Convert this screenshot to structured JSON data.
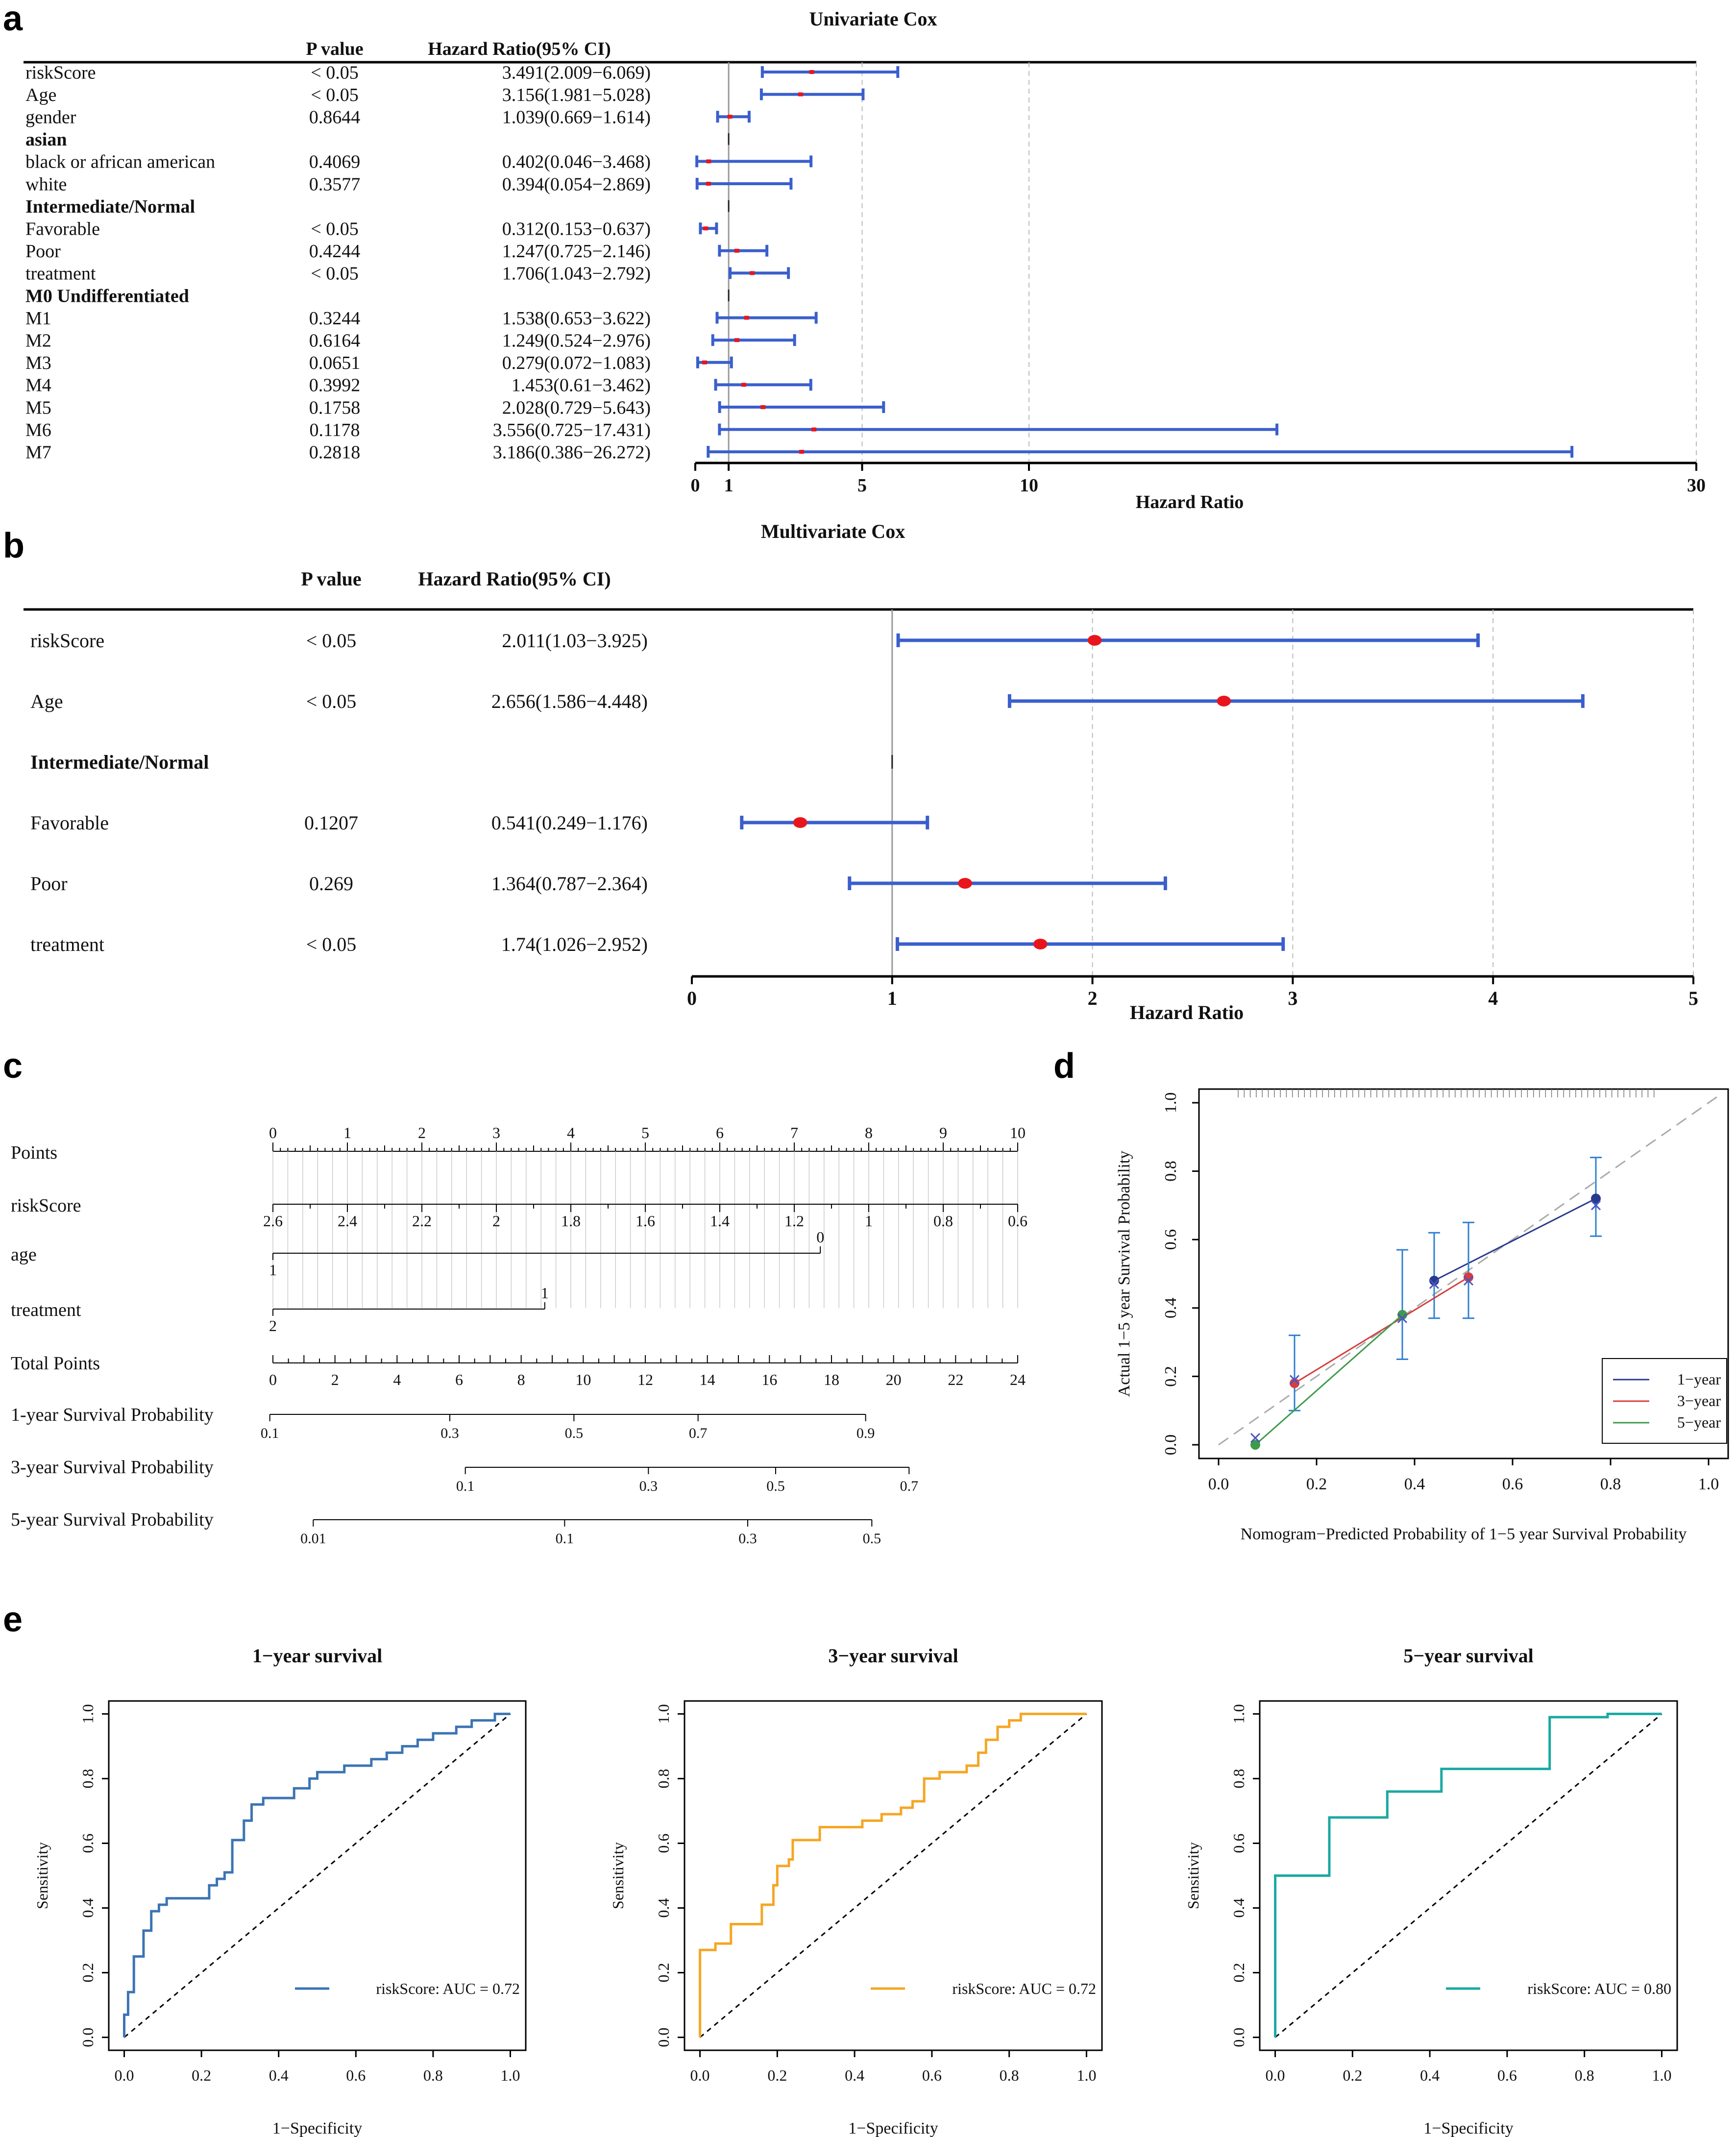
{
  "panels": {
    "a": "a",
    "b": "b",
    "c": "c",
    "d": "d",
    "e": "e"
  },
  "colors": {
    "ci": "#3a5fcd",
    "point": "#e8161c",
    "grid": "#bbbbbb",
    "y1": "#283a8c",
    "y3": "#d63e3e",
    "y5": "#3d9b4a",
    "roc1": "#3b74b4",
    "roc3": "#f5a623",
    "roc5": "#1aa9a2"
  },
  "chart_data": [
    {
      "type": "forest",
      "title": "Univariate Cox",
      "col_p": "P value",
      "col_hr": "Hazard Ratio(95% CI)",
      "xlabel": "Hazard Ratio",
      "xticks": [
        0,
        1,
        5,
        10,
        30
      ],
      "xlim": [
        0,
        30
      ],
      "rows": [
        {
          "label": "riskScore",
          "p": "< 0.05",
          "hr_text": "3.491(2.009−6.069)",
          "hr": 3.491,
          "lo": 2.009,
          "hi": 6.069
        },
        {
          "label": "Age",
          "p": "< 0.05",
          "hr_text": "3.156(1.981−5.028)",
          "hr": 3.156,
          "lo": 1.981,
          "hi": 5.028
        },
        {
          "label": "gender",
          "p": "0.8644",
          "hr_text": "1.039(0.669−1.614)",
          "hr": 1.039,
          "lo": 0.669,
          "hi": 1.614
        },
        {
          "label": "asian",
          "header": true
        },
        {
          "label": "black or african american",
          "p": "0.4069",
          "hr_text": "0.402(0.046−3.468)",
          "hr": 0.402,
          "lo": 0.046,
          "hi": 3.468
        },
        {
          "label": "white",
          "p": "0.3577",
          "hr_text": "0.394(0.054−2.869)",
          "hr": 0.394,
          "lo": 0.054,
          "hi": 2.869
        },
        {
          "label": "Intermediate/Normal",
          "header": true
        },
        {
          "label": "Favorable",
          "p": "< 0.05",
          "hr_text": "0.312(0.153−0.637)",
          "hr": 0.312,
          "lo": 0.153,
          "hi": 0.637
        },
        {
          "label": "Poor",
          "p": "0.4244",
          "hr_text": "1.247(0.725−2.146)",
          "hr": 1.247,
          "lo": 0.725,
          "hi": 2.146
        },
        {
          "label": "treatment",
          "p": "< 0.05",
          "hr_text": "1.706(1.043−2.792)",
          "hr": 1.706,
          "lo": 1.043,
          "hi": 2.792
        },
        {
          "label": "M0 Undifferentiated",
          "header": true
        },
        {
          "label": "M1",
          "p": "0.3244",
          "hr_text": "1.538(0.653−3.622)",
          "hr": 1.538,
          "lo": 0.653,
          "hi": 3.622
        },
        {
          "label": "M2",
          "p": "0.6164",
          "hr_text": "1.249(0.524−2.976)",
          "hr": 1.249,
          "lo": 0.524,
          "hi": 2.976
        },
        {
          "label": "M3",
          "p": "0.0651",
          "hr_text": "0.279(0.072−1.083)",
          "hr": 0.279,
          "lo": 0.072,
          "hi": 1.083
        },
        {
          "label": "M4",
          "p": "0.3992",
          "hr_text": "1.453(0.61−3.462)",
          "hr": 1.453,
          "lo": 0.61,
          "hi": 3.462
        },
        {
          "label": "M5",
          "p": "0.1758",
          "hr_text": "2.028(0.729−5.643)",
          "hr": 2.028,
          "lo": 0.729,
          "hi": 5.643
        },
        {
          "label": "M6",
          "p": "0.1178",
          "hr_text": "3.556(0.725−17.431)",
          "hr": 3.556,
          "lo": 0.725,
          "hi": 17.431
        },
        {
          "label": "M7",
          "p": "0.2818",
          "hr_text": "3.186(0.386−26.272)",
          "hr": 3.186,
          "lo": 0.386,
          "hi": 26.272
        }
      ]
    },
    {
      "type": "forest",
      "title": "Multivariate Cox",
      "col_p": "P value",
      "col_hr": "Hazard Ratio(95% CI)",
      "xlabel": "Hazard Ratio",
      "xticks": [
        0,
        1,
        2,
        3,
        4,
        5
      ],
      "xlim": [
        0,
        5
      ],
      "rows": [
        {
          "label": "riskScore",
          "p": "< 0.05",
          "hr_text": "2.011(1.03−3.925)",
          "hr": 2.011,
          "lo": 1.03,
          "hi": 3.925
        },
        {
          "label": "Age",
          "p": "< 0.05",
          "hr_text": "2.656(1.586−4.448)",
          "hr": 2.656,
          "lo": 1.586,
          "hi": 4.448
        },
        {
          "label": "Intermediate/Normal",
          "header": true
        },
        {
          "label": "Favorable",
          "p": "0.1207",
          "hr_text": "0.541(0.249−1.176)",
          "hr": 0.541,
          "lo": 0.249,
          "hi": 1.176
        },
        {
          "label": "Poor",
          "p": "0.269",
          "hr_text": "1.364(0.787−2.364)",
          "hr": 1.364,
          "lo": 0.787,
          "hi": 2.364
        },
        {
          "label": "treatment",
          "p": "< 0.05",
          "hr_text": "1.74(1.026−2.952)",
          "hr": 1.74,
          "lo": 1.026,
          "hi": 2.952
        }
      ]
    },
    {
      "type": "nomogram",
      "scales": [
        {
          "label": "Points",
          "kind": "points",
          "ticks": [
            {
              "v": 0,
              "t": "0"
            },
            {
              "v": 1,
              "t": "1"
            },
            {
              "v": 2,
              "t": "2"
            },
            {
              "v": 3,
              "t": "3"
            },
            {
              "v": 4,
              "t": "4"
            },
            {
              "v": 5,
              "t": "5"
            },
            {
              "v": 6,
              "t": "6"
            },
            {
              "v": 7,
              "t": "7"
            },
            {
              "v": 8,
              "t": "8"
            },
            {
              "v": 9,
              "t": "9"
            },
            {
              "v": 10,
              "t": "10"
            }
          ]
        },
        {
          "label": "riskScore",
          "kind": "axis",
          "ticks": [
            {
              "v": 0,
              "t": "2.6"
            },
            {
              "v": 1,
              "t": "2.4"
            },
            {
              "v": 2,
              "t": "2.2"
            },
            {
              "v": 3,
              "t": "2"
            },
            {
              "v": 4,
              "t": "1.8"
            },
            {
              "v": 5,
              "t": "1.6"
            },
            {
              "v": 6,
              "t": "1.4"
            },
            {
              "v": 7,
              "t": "1.2"
            },
            {
              "v": 8,
              "t": "1"
            },
            {
              "v": 9,
              "t": "0.8"
            },
            {
              "v": 10,
              "t": "0.6"
            }
          ]
        },
        {
          "label": "age",
          "kind": "binary",
          "start": {
            "v": 0,
            "t": "1"
          },
          "end": {
            "v": 7.35,
            "t": "0"
          }
        },
        {
          "label": "treatment",
          "kind": "binary",
          "start": {
            "v": 0,
            "t": "2"
          },
          "end": {
            "v": 3.65,
            "t": "1"
          }
        },
        {
          "label": "Total Points",
          "kind": "total",
          "min": 0,
          "max": 24,
          "ticks": [
            {
              "v": 0,
              "t": "0"
            },
            {
              "v": 2,
              "t": "2"
            },
            {
              "v": 4,
              "t": "4"
            },
            {
              "v": 6,
              "t": "6"
            },
            {
              "v": 8,
              "t": "8"
            },
            {
              "v": 10,
              "t": "10"
            },
            {
              "v": 12,
              "t": "12"
            },
            {
              "v": 14,
              "t": "14"
            },
            {
              "v": 16,
              "t": "16"
            },
            {
              "v": 18,
              "t": "18"
            },
            {
              "v": 20,
              "t": "20"
            },
            {
              "v": 22,
              "t": "22"
            },
            {
              "v": 24,
              "t": "24"
            }
          ]
        },
        {
          "label": "1-year Survival Probability",
          "kind": "prob",
          "range": [
            -0.1,
            19.1
          ],
          "ticks": [
            {
              "v": -0.1,
              "t": "0.1"
            },
            {
              "v": 5.7,
              "t": "0.3"
            },
            {
              "v": 9.7,
              "t": "0.5"
            },
            {
              "v": 13.7,
              "t": "0.7"
            },
            {
              "v": 19.1,
              "t": "0.9"
            }
          ]
        },
        {
          "label": "3-year Survival Probability",
          "kind": "prob",
          "range": [
            6.2,
            20.5
          ],
          "ticks": [
            {
              "v": 6.2,
              "t": "0.1"
            },
            {
              "v": 12.1,
              "t": "0.3"
            },
            {
              "v": 16.2,
              "t": "0.5"
            },
            {
              "v": 20.5,
              "t": "0.7"
            }
          ]
        },
        {
          "label": "5-year Survival Probability",
          "kind": "prob",
          "range": [
            1.3,
            19.3
          ],
          "ticks": [
            {
              "v": 1.3,
              "t": "0.01"
            },
            {
              "v": 9.4,
              "t": "0.1"
            },
            {
              "v": 15.3,
              "t": "0.3"
            },
            {
              "v": 19.3,
              "t": "0.5"
            }
          ]
        }
      ]
    },
    {
      "type": "calibration",
      "xlabel": "Nomogram−Predicted Probability of 1−5 year Survival Probability",
      "ylabel": "Actual 1−5 year Survival Probability",
      "xlim": [
        -0.04,
        1.04
      ],
      "ylim": [
        -0.04,
        1.04
      ],
      "ticks": [
        {
          "v": 0,
          "t": "0.0"
        },
        {
          "v": 0.2,
          "t": "0.2"
        },
        {
          "v": 0.4,
          "t": "0.4"
        },
        {
          "v": 0.6,
          "t": "0.6"
        },
        {
          "v": 0.8,
          "t": "0.8"
        },
        {
          "v": 1,
          "t": "1.0"
        }
      ],
      "legend": [
        "1−year",
        "3−year",
        "5−year"
      ],
      "series": [
        {
          "name": "1-year",
          "color_key": "y1",
          "points": [
            {
              "x": 0.44,
              "y": 0.48,
              "lo": 0.37,
              "hi": 0.62,
              "xx": 0.44,
              "xy": 0.47
            },
            {
              "x": 0.77,
              "y": 0.72,
              "lo": 0.61,
              "hi": 0.84,
              "xx": 0.77,
              "xy": 0.7
            }
          ]
        },
        {
          "name": "3-year",
          "color_key": "y3",
          "points": [
            {
              "x": 0.155,
              "y": 0.18,
              "lo": 0.1,
              "hi": 0.32,
              "xx": 0.155,
              "xy": 0.19
            },
            {
              "x": 0.51,
              "y": 0.49,
              "lo": 0.37,
              "hi": 0.65,
              "xx": 0.51,
              "xy": 0.48
            }
          ]
        },
        {
          "name": "5-year",
          "color_key": "y5",
          "points": [
            {
              "x": 0.075,
              "y": 0.0,
              "lo": 0.0,
              "hi": 0.0,
              "xx": 0.075,
              "xy": 0.02
            },
            {
              "x": 0.375,
              "y": 0.38,
              "lo": 0.25,
              "hi": 0.57,
              "xx": 0.375,
              "xy": 0.37
            }
          ]
        }
      ]
    },
    {
      "type": "roc",
      "title": "1−year survival",
      "xlabel": "1−Specificity",
      "ylabel": "Sensitivity",
      "legend": "riskScore: AUC = 0.72",
      "auc": 0.72,
      "color_key": "roc1",
      "ticks": [
        {
          "v": 0,
          "t": "0.0"
        },
        {
          "v": 0.2,
          "t": "0.2"
        },
        {
          "v": 0.4,
          "t": "0.4"
        },
        {
          "v": 0.6,
          "t": "0.6"
        },
        {
          "v": 0.8,
          "t": "0.8"
        },
        {
          "v": 1,
          "t": "1.0"
        }
      ],
      "curve": [
        [
          0,
          0
        ],
        [
          0,
          0.07
        ],
        [
          0.01,
          0.07
        ],
        [
          0.01,
          0.14
        ],
        [
          0.025,
          0.14
        ],
        [
          0.025,
          0.25
        ],
        [
          0.05,
          0.25
        ],
        [
          0.05,
          0.33
        ],
        [
          0.07,
          0.33
        ],
        [
          0.07,
          0.39
        ],
        [
          0.09,
          0.39
        ],
        [
          0.09,
          0.41
        ],
        [
          0.11,
          0.41
        ],
        [
          0.11,
          0.43
        ],
        [
          0.22,
          0.43
        ],
        [
          0.22,
          0.47
        ],
        [
          0.24,
          0.47
        ],
        [
          0.24,
          0.49
        ],
        [
          0.26,
          0.49
        ],
        [
          0.26,
          0.51
        ],
        [
          0.28,
          0.51
        ],
        [
          0.28,
          0.61
        ],
        [
          0.31,
          0.61
        ],
        [
          0.31,
          0.67
        ],
        [
          0.33,
          0.67
        ],
        [
          0.33,
          0.72
        ],
        [
          0.36,
          0.72
        ],
        [
          0.36,
          0.74
        ],
        [
          0.44,
          0.74
        ],
        [
          0.44,
          0.77
        ],
        [
          0.48,
          0.77
        ],
        [
          0.48,
          0.8
        ],
        [
          0.5,
          0.8
        ],
        [
          0.5,
          0.82
        ],
        [
          0.57,
          0.82
        ],
        [
          0.57,
          0.84
        ],
        [
          0.64,
          0.84
        ],
        [
          0.64,
          0.86
        ],
        [
          0.68,
          0.86
        ],
        [
          0.68,
          0.88
        ],
        [
          0.72,
          0.88
        ],
        [
          0.72,
          0.9
        ],
        [
          0.76,
          0.9
        ],
        [
          0.76,
          0.92
        ],
        [
          0.8,
          0.92
        ],
        [
          0.8,
          0.94
        ],
        [
          0.86,
          0.94
        ],
        [
          0.86,
          0.96
        ],
        [
          0.9,
          0.96
        ],
        [
          0.9,
          0.98
        ],
        [
          0.96,
          0.98
        ],
        [
          0.96,
          1.0
        ],
        [
          1.0,
          1.0
        ]
      ]
    },
    {
      "type": "roc",
      "title": "3−year survival",
      "xlabel": "1−Specificity",
      "ylabel": "Sensitivity",
      "legend": "riskScore: AUC = 0.72",
      "auc": 0.72,
      "color_key": "roc3",
      "ticks": [
        {
          "v": 0,
          "t": "0.0"
        },
        {
          "v": 0.2,
          "t": "0.2"
        },
        {
          "v": 0.4,
          "t": "0.4"
        },
        {
          "v": 0.6,
          "t": "0.6"
        },
        {
          "v": 0.8,
          "t": "0.8"
        },
        {
          "v": 1,
          "t": "1.0"
        }
      ],
      "curve": [
        [
          0,
          0
        ],
        [
          0,
          0.27
        ],
        [
          0.04,
          0.27
        ],
        [
          0.04,
          0.29
        ],
        [
          0.08,
          0.29
        ],
        [
          0.08,
          0.35
        ],
        [
          0.16,
          0.35
        ],
        [
          0.16,
          0.41
        ],
        [
          0.19,
          0.41
        ],
        [
          0.19,
          0.47
        ],
        [
          0.2,
          0.47
        ],
        [
          0.2,
          0.53
        ],
        [
          0.23,
          0.53
        ],
        [
          0.23,
          0.55
        ],
        [
          0.24,
          0.55
        ],
        [
          0.24,
          0.61
        ],
        [
          0.31,
          0.61
        ],
        [
          0.31,
          0.65
        ],
        [
          0.42,
          0.65
        ],
        [
          0.42,
          0.67
        ],
        [
          0.47,
          0.67
        ],
        [
          0.47,
          0.69
        ],
        [
          0.52,
          0.69
        ],
        [
          0.52,
          0.71
        ],
        [
          0.55,
          0.71
        ],
        [
          0.55,
          0.73
        ],
        [
          0.58,
          0.73
        ],
        [
          0.58,
          0.8
        ],
        [
          0.62,
          0.8
        ],
        [
          0.62,
          0.82
        ],
        [
          0.69,
          0.82
        ],
        [
          0.69,
          0.84
        ],
        [
          0.72,
          0.84
        ],
        [
          0.72,
          0.88
        ],
        [
          0.74,
          0.88
        ],
        [
          0.74,
          0.92
        ],
        [
          0.77,
          0.92
        ],
        [
          0.77,
          0.96
        ],
        [
          0.8,
          0.96
        ],
        [
          0.8,
          0.98
        ],
        [
          0.83,
          0.98
        ],
        [
          0.83,
          1.0
        ],
        [
          1.0,
          1.0
        ]
      ]
    },
    {
      "type": "roc",
      "title": "5−year survival",
      "xlabel": "1−Specificity",
      "ylabel": "Sensitivity",
      "legend": "riskScore: AUC = 0.80",
      "auc": 0.8,
      "color_key": "roc5",
      "ticks": [
        {
          "v": 0,
          "t": "0.0"
        },
        {
          "v": 0.2,
          "t": "0.2"
        },
        {
          "v": 0.4,
          "t": "0.4"
        },
        {
          "v": 0.6,
          "t": "0.6"
        },
        {
          "v": 0.8,
          "t": "0.8"
        },
        {
          "v": 1,
          "t": "1.0"
        }
      ],
      "curve": [
        [
          0,
          0
        ],
        [
          0,
          0.5
        ],
        [
          0.14,
          0.5
        ],
        [
          0.14,
          0.68
        ],
        [
          0.29,
          0.68
        ],
        [
          0.29,
          0.76
        ],
        [
          0.43,
          0.76
        ],
        [
          0.43,
          0.83
        ],
        [
          0.71,
          0.83
        ],
        [
          0.71,
          0.99
        ],
        [
          0.86,
          0.99
        ],
        [
          0.86,
          1.0
        ],
        [
          1.0,
          1.0
        ]
      ]
    }
  ]
}
